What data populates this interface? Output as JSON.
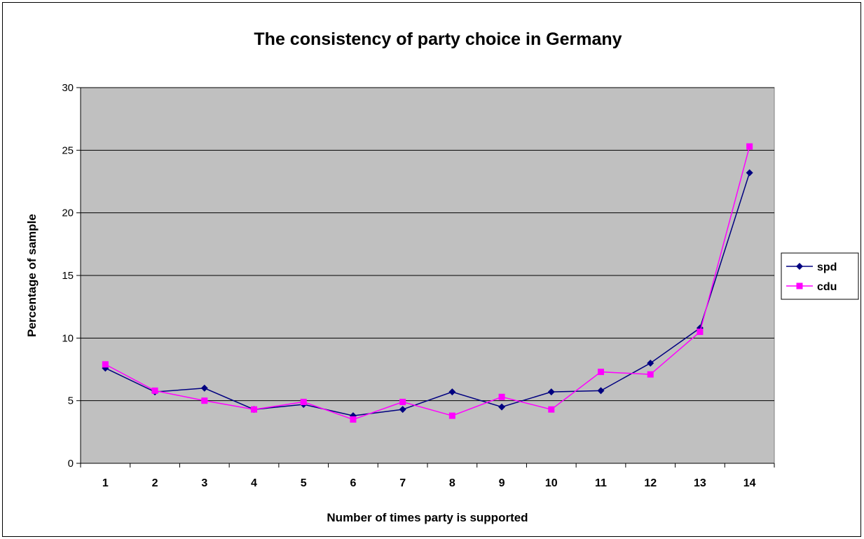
{
  "chart_data": {
    "type": "line",
    "title": "The consistency of party choice in Germany",
    "xlabel": "Number of times party is supported",
    "ylabel": "Percentage of sample",
    "categories": [
      "1",
      "2",
      "3",
      "4",
      "5",
      "6",
      "7",
      "8",
      "9",
      "10",
      "11",
      "12",
      "13",
      "14"
    ],
    "ylim": [
      0,
      30
    ],
    "yticks": [
      0,
      5,
      10,
      15,
      20,
      25,
      30
    ],
    "grid": true,
    "legend_position": "right",
    "plot_background": "#c0c0c0",
    "series": [
      {
        "name": "spd",
        "color": "#000080",
        "marker": "diamond",
        "values": [
          7.6,
          5.7,
          6.0,
          4.3,
          4.7,
          3.8,
          4.3,
          5.7,
          4.5,
          5.7,
          5.8,
          8.0,
          10.8,
          23.2
        ]
      },
      {
        "name": "cdu",
        "color": "#ff00ff",
        "marker": "square",
        "values": [
          7.9,
          5.8,
          5.0,
          4.3,
          4.9,
          3.5,
          4.9,
          3.8,
          5.3,
          4.3,
          7.3,
          7.1,
          10.5,
          25.3
        ]
      }
    ]
  }
}
